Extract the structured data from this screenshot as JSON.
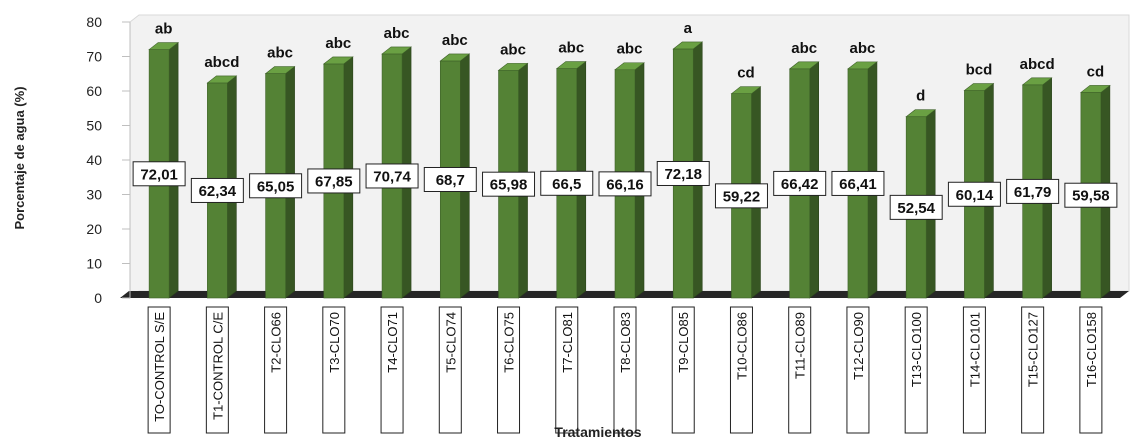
{
  "chart_data": {
    "type": "bar",
    "title": "",
    "xlabel": "Tratamientos",
    "ylabel": "Porcentaje de agua (%)",
    "ylim": [
      0,
      80
    ],
    "yticks": [
      0,
      10,
      20,
      30,
      40,
      50,
      60,
      70,
      80
    ],
    "grid": false,
    "style": "3d",
    "categories": [
      "TO-CONTROL S/E",
      "T1-CONTROL C/E",
      "T2-CLO66",
      "T3-CLO70",
      "T4-CLO71",
      "T5-CLO74",
      "T6-CLO75",
      "T7-CLO81",
      "T8-CLO83",
      "T9-CLO85",
      "T10-CLO86",
      "T11-CLO89",
      "T12-CLO90",
      "T13-CLO100",
      "T14-CLO101",
      "T15-CLO127",
      "T16-CLO158"
    ],
    "values": [
      72.01,
      62.34,
      65.05,
      67.85,
      70.74,
      68.7,
      65.98,
      66.5,
      66.16,
      72.18,
      59.22,
      66.42,
      66.41,
      52.54,
      60.14,
      61.79,
      59.58
    ],
    "value_labels": [
      "72,01",
      "62,34",
      "65,05",
      "67,85",
      "70,74",
      "68,7",
      "65,98",
      "66,5",
      "66,16",
      "72,18",
      "59,22",
      "66,42",
      "66,41",
      "52,54",
      "60,14",
      "61,79",
      "59,58"
    ],
    "letters": [
      "ab",
      "abcd",
      "abc",
      "abc",
      "abc",
      "abc",
      "abc",
      "abc",
      "abc",
      "a",
      "cd",
      "abc",
      "abc",
      "d",
      "bcd",
      "abcd",
      "cd"
    ],
    "colors": {
      "bar_front": "#548235",
      "bar_side": "#375623",
      "bar_top": "#6aa043",
      "floor": "#262626",
      "wall": "#f2f2f2"
    }
  }
}
